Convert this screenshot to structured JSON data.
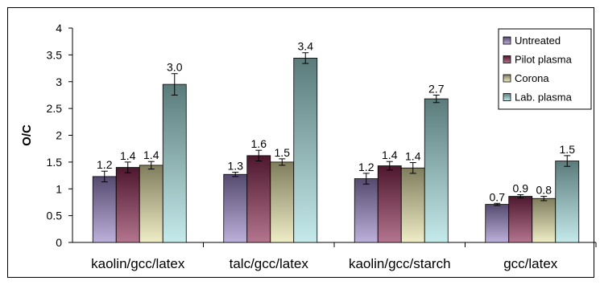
{
  "chart_data": {
    "type": "bar",
    "title": "",
    "xlabel": "",
    "ylabel": "O/C",
    "ylim": [
      0,
      4
    ],
    "yticks": [
      "0",
      "0.5",
      "1",
      "1.5",
      "2",
      "2.5",
      "3",
      "3.5",
      "4"
    ],
    "grid": false,
    "legend_position": "top-right",
    "error_bars": true,
    "categories": [
      "kaolin/gcc/latex",
      "talc/gcc/latex",
      "kaolin/gcc/starch",
      "gcc/latex"
    ],
    "series": [
      {
        "name": "Untreated",
        "color": "#9a86c8",
        "values": [
          1.23,
          1.27,
          1.19,
          0.71
        ],
        "errors": [
          0.1,
          0.04,
          0.1,
          0.02
        ],
        "labels": [
          "1.2",
          "1.3",
          "1.2",
          "0.7"
        ]
      },
      {
        "name": "Pilot plasma",
        "color": "#8c2a52",
        "values": [
          1.4,
          1.62,
          1.43,
          0.86
        ],
        "errors": [
          0.1,
          0.1,
          0.08,
          0.03
        ],
        "labels": [
          "1.4",
          "1.6",
          "1.4",
          "0.9"
        ]
      },
      {
        "name": "Corona",
        "color": "#e6e3a8",
        "values": [
          1.44,
          1.5,
          1.39,
          0.82
        ],
        "errors": [
          0.07,
          0.06,
          0.1,
          0.04
        ],
        "labels": [
          "1.4",
          "1.5",
          "1.4",
          "0.8"
        ]
      },
      {
        "name": "Lab. plasma",
        "color": "#a6dfe0",
        "values": [
          2.95,
          3.44,
          2.68,
          1.52
        ],
        "errors": [
          0.2,
          0.1,
          0.07,
          0.1
        ],
        "labels": [
          "3.0",
          "3.4",
          "2.7",
          "1.5"
        ]
      }
    ]
  }
}
